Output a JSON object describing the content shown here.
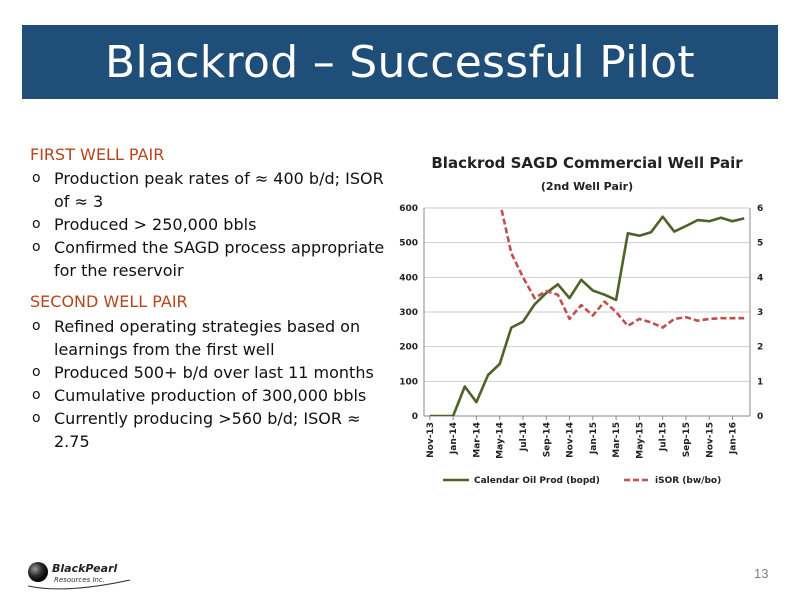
{
  "slide": {
    "title": "Blackrod – Successful Pilot",
    "page_number": "13"
  },
  "first": {
    "heading": "FIRST WELL PAIR",
    "bullets": [
      "Production peak rates of ≈ 400 b/d; ISOR of ≈ 3",
      "Produced > 250,000 bbls",
      "Confirmed the SAGD process appropriate for the reservoir"
    ]
  },
  "second": {
    "heading": "SECOND WELL PAIR",
    "bullets": [
      "Refined operating strategies based on learnings from the first well",
      "Produced 500+ b/d over last 11 months",
      "Cumulative production of 300,000 bbls",
      "Currently producing >560 b/d; ISOR ≈ 2.75"
    ]
  },
  "logo": {
    "line1": "BlackPearl",
    "line2": "Resources Inc."
  },
  "chart_data": {
    "type": "line",
    "title": "Blackrod SAGD Commercial Well Pair",
    "subtitle": "(2nd Well Pair)",
    "x": [
      "Nov-13",
      "Dec-13",
      "Jan-14",
      "Feb-14",
      "Mar-14",
      "Apr-14",
      "May-14",
      "Jun-14",
      "Jul-14",
      "Aug-14",
      "Sep-14",
      "Oct-14",
      "Nov-14",
      "Dec-14",
      "Jan-15",
      "Feb-15",
      "Mar-15",
      "Apr-15",
      "May-15",
      "Jun-15",
      "Jul-15",
      "Aug-15",
      "Sep-15",
      "Oct-15",
      "Nov-15",
      "Dec-15",
      "Jan-16",
      "Feb-16"
    ],
    "x_tick_labels": [
      "Nov-13",
      "Jan-14",
      "Mar-14",
      "May-14",
      "Jul-14",
      "Sep-14",
      "Nov-14",
      "Jan-15",
      "Mar-15",
      "May-15",
      "Jul-15",
      "Sep-15",
      "Nov-15",
      "Jan-16"
    ],
    "y_left": {
      "range": [
        0,
        600
      ],
      "ticks": [
        0,
        100,
        200,
        300,
        400,
        500,
        600
      ]
    },
    "y_right": {
      "range": [
        0,
        6
      ],
      "ticks": [
        0,
        1,
        2,
        3,
        4,
        5,
        6
      ]
    },
    "grid": true,
    "legend_position": "bottom",
    "series": [
      {
        "name": "Calendar Oil Prod (bopd)",
        "axis": "left",
        "color": "#4f6228",
        "style": "solid",
        "values": [
          0,
          0,
          0,
          85,
          40,
          118,
          150,
          255,
          272,
          322,
          355,
          380,
          340,
          393,
          362,
          350,
          335,
          527,
          520,
          530,
          575,
          532,
          548,
          565,
          562,
          572,
          562,
          570
        ]
      },
      {
        "name": "iSOR (bw/bo)",
        "axis": "right",
        "color": "#c0504d",
        "style": "dashed",
        "values": [
          null,
          null,
          null,
          null,
          null,
          null,
          6.2,
          4.7,
          4.0,
          3.4,
          3.6,
          3.5,
          2.8,
          3.2,
          2.9,
          3.3,
          3.0,
          2.6,
          2.8,
          2.7,
          2.55,
          2.8,
          2.85,
          2.75,
          2.8,
          2.82,
          2.82,
          2.82
        ]
      }
    ]
  }
}
